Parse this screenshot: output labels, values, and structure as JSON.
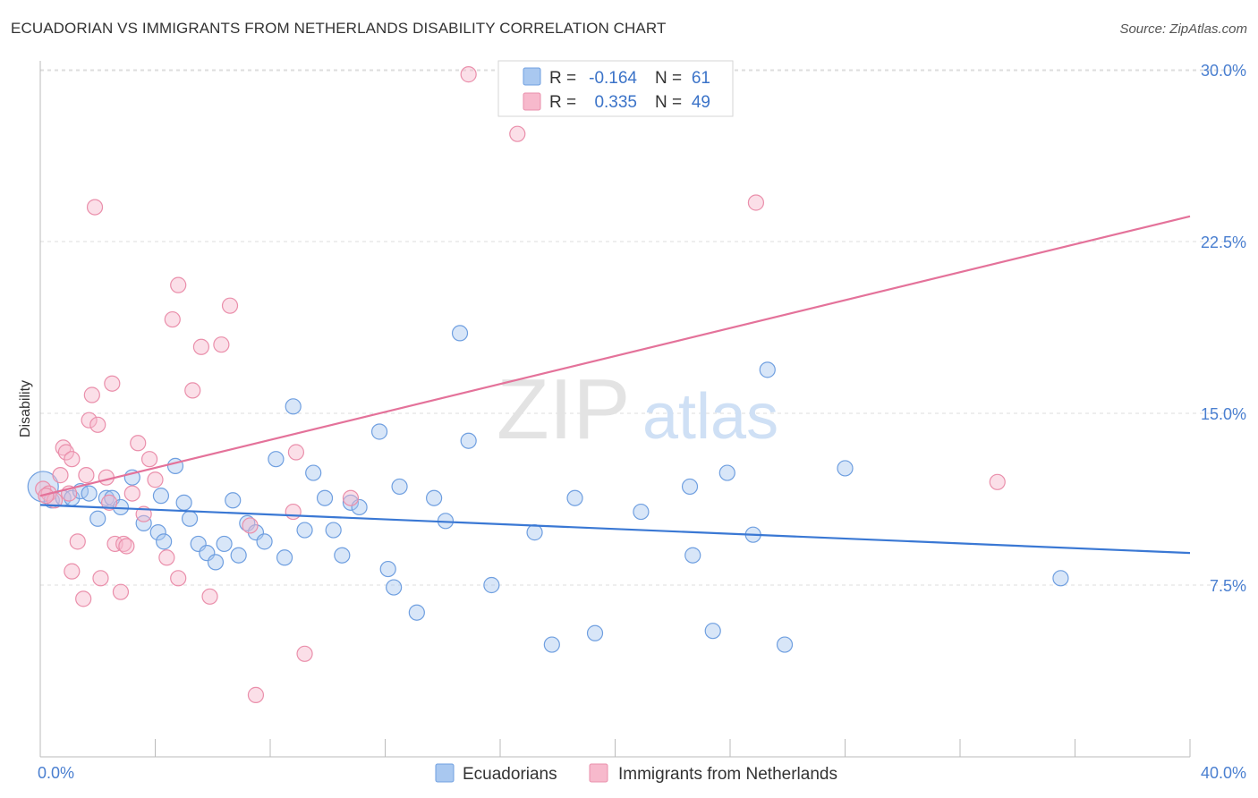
{
  "header": {
    "title": "ECUADORIAN VS IMMIGRANTS FROM NETHERLANDS DISABILITY CORRELATION CHART",
    "source": "Source: ZipAtlas.com"
  },
  "watermark": {
    "zip": "ZIP",
    "atlas": "atlas"
  },
  "legend": {
    "r_label": "R =",
    "n_label": "N =",
    "rows": [
      {
        "r": "-0.164",
        "n": "61"
      },
      {
        "r": "0.335",
        "n": "49"
      }
    ]
  },
  "bottom_legend": [
    "Ecuadorians",
    "Immigrants from Netherlands"
  ],
  "chart_data": {
    "type": "scatter",
    "title": "ECUADORIAN VS IMMIGRANTS FROM NETHERLANDS DISABILITY CORRELATION CHART",
    "ylabel": "Disability",
    "xlim": [
      0,
      40
    ],
    "ylim": [
      0,
      31.5
    ],
    "x_tick_labels": [
      "0.0%",
      "40.0%"
    ],
    "y_ticks": [
      7.5,
      15.0,
      22.5,
      30.0
    ],
    "y_tick_labels": [
      "7.5%",
      "15.0%",
      "22.5%",
      "30.0%"
    ],
    "grid": "horizontal dashed",
    "legend_position": "top-center",
    "colors": {
      "ecuadorians_fill": "#a9c8f0",
      "ecuadorians_stroke": "#6f9fe0",
      "ecuadorians_line": "#3a78d4",
      "netherlands_fill": "#f7b9cc",
      "netherlands_stroke": "#ea8fab",
      "netherlands_line": "#e4729a",
      "tick_text": "#4a7fd0"
    },
    "series": [
      {
        "name": "Ecuadorians",
        "r": -0.164,
        "n": 61,
        "trend": {
          "x": [
            0,
            40
          ],
          "y": [
            11.0,
            8.9
          ]
        },
        "points": [
          [
            0.1,
            11.8
          ],
          [
            0.4,
            11.2
          ],
          [
            0.8,
            11.3
          ],
          [
            1.1,
            11.3
          ],
          [
            1.4,
            11.6
          ],
          [
            1.7,
            11.5
          ],
          [
            2.0,
            10.4
          ],
          [
            2.3,
            11.3
          ],
          [
            2.5,
            11.3
          ],
          [
            2.8,
            10.9
          ],
          [
            3.2,
            12.2
          ],
          [
            3.6,
            10.2
          ],
          [
            4.1,
            9.8
          ],
          [
            4.3,
            9.4
          ],
          [
            4.2,
            11.4
          ],
          [
            4.7,
            12.7
          ],
          [
            5.0,
            11.1
          ],
          [
            5.2,
            10.4
          ],
          [
            5.5,
            9.3
          ],
          [
            5.8,
            8.9
          ],
          [
            6.1,
            8.5
          ],
          [
            6.4,
            9.3
          ],
          [
            6.7,
            11.2
          ],
          [
            6.9,
            8.8
          ],
          [
            7.2,
            10.2
          ],
          [
            7.5,
            9.8
          ],
          [
            7.8,
            9.4
          ],
          [
            8.2,
            13.0
          ],
          [
            8.5,
            8.7
          ],
          [
            8.8,
            15.3
          ],
          [
            9.2,
            9.9
          ],
          [
            9.5,
            12.4
          ],
          [
            9.9,
            11.3
          ],
          [
            10.2,
            9.9
          ],
          [
            10.5,
            8.8
          ],
          [
            10.8,
            11.1
          ],
          [
            11.1,
            10.9
          ],
          [
            11.8,
            14.2
          ],
          [
            12.1,
            8.2
          ],
          [
            12.3,
            7.4
          ],
          [
            12.5,
            11.8
          ],
          [
            13.1,
            6.3
          ],
          [
            13.7,
            11.3
          ],
          [
            14.1,
            10.3
          ],
          [
            14.6,
            18.5
          ],
          [
            14.9,
            13.8
          ],
          [
            15.7,
            7.5
          ],
          [
            17.2,
            9.8
          ],
          [
            17.8,
            4.9
          ],
          [
            18.6,
            11.3
          ],
          [
            19.3,
            5.4
          ],
          [
            20.9,
            10.7
          ],
          [
            22.6,
            11.8
          ],
          [
            22.7,
            8.8
          ],
          [
            23.4,
            5.5
          ],
          [
            23.9,
            12.4
          ],
          [
            24.8,
            9.7
          ],
          [
            25.3,
            16.9
          ],
          [
            25.9,
            4.9
          ],
          [
            28.0,
            12.6
          ],
          [
            35.5,
            7.8
          ]
        ]
      },
      {
        "name": "Immigrants from Netherlands",
        "r": 0.335,
        "n": 49,
        "trend": {
          "x": [
            0,
            40
          ],
          "y": [
            11.4,
            23.6
          ]
        },
        "points": [
          [
            0.1,
            11.7
          ],
          [
            0.3,
            11.5
          ],
          [
            0.5,
            11.2
          ],
          [
            0.7,
            12.3
          ],
          [
            0.8,
            13.5
          ],
          [
            0.9,
            13.3
          ],
          [
            1.0,
            11.5
          ],
          [
            1.1,
            13.0
          ],
          [
            1.3,
            9.4
          ],
          [
            1.1,
            8.1
          ],
          [
            1.5,
            6.9
          ],
          [
            1.6,
            12.3
          ],
          [
            1.7,
            14.7
          ],
          [
            1.8,
            15.8
          ],
          [
            1.9,
            24.0
          ],
          [
            2.0,
            14.5
          ],
          [
            2.1,
            7.8
          ],
          [
            2.3,
            12.2
          ],
          [
            2.4,
            11.1
          ],
          [
            2.5,
            16.3
          ],
          [
            2.6,
            9.3
          ],
          [
            2.8,
            7.2
          ],
          [
            2.9,
            9.3
          ],
          [
            3.0,
            9.2
          ],
          [
            3.2,
            11.5
          ],
          [
            3.4,
            13.7
          ],
          [
            3.6,
            10.6
          ],
          [
            3.8,
            13.0
          ],
          [
            4.0,
            12.1
          ],
          [
            4.4,
            8.7
          ],
          [
            4.6,
            19.1
          ],
          [
            4.8,
            20.6
          ],
          [
            4.8,
            7.8
          ],
          [
            5.3,
            16.0
          ],
          [
            5.6,
            17.9
          ],
          [
            5.9,
            7.0
          ],
          [
            6.3,
            18.0
          ],
          [
            6.6,
            19.7
          ],
          [
            7.3,
            10.1
          ],
          [
            7.5,
            2.7
          ],
          [
            8.8,
            10.7
          ],
          [
            8.9,
            13.3
          ],
          [
            9.2,
            4.5
          ],
          [
            10.8,
            11.3
          ],
          [
            14.9,
            29.8
          ],
          [
            16.6,
            27.2
          ],
          [
            24.9,
            24.2
          ],
          [
            33.3,
            12.0
          ],
          [
            0.2,
            11.4
          ]
        ]
      }
    ]
  }
}
